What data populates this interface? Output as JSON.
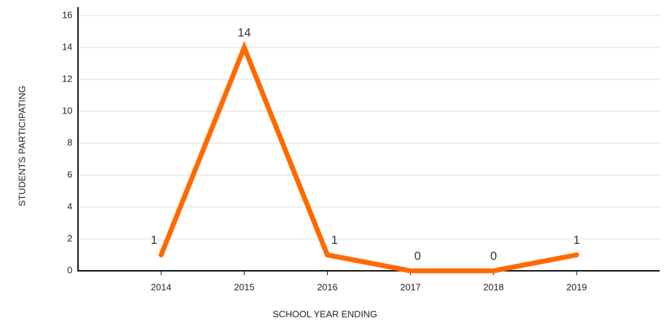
{
  "chart_data": {
    "type": "line",
    "x_label": "SCHOOL YEAR ENDING",
    "y_label": "STUDENTS PARTICIPATING",
    "categories": [
      "2014",
      "2015",
      "2016",
      "2017",
      "2018",
      "2019"
    ],
    "values": [
      1,
      14,
      1,
      0,
      0,
      1
    ],
    "color": "#ff6a00",
    "ylim": [
      0,
      16
    ],
    "yticks": [
      0,
      2,
      4,
      6,
      8,
      10,
      12,
      14,
      16
    ],
    "grid": true,
    "data_labels": true
  }
}
